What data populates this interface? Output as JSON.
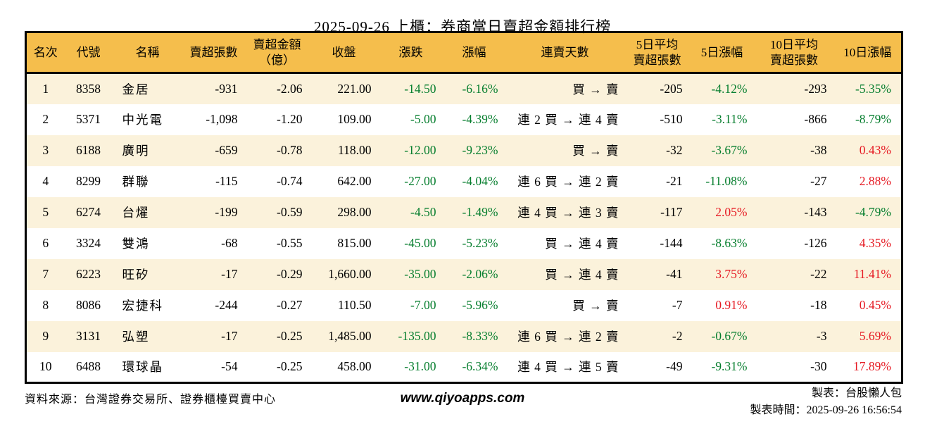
{
  "title": "2025-09-26 上櫃：券商當日賣超金額排行榜",
  "colors": {
    "header_bg": "#f5be4c",
    "stripe_bg": "#fbf2db",
    "row_bg": "#ffffff",
    "up_red": "#e61a23",
    "down_green": "#067e2e",
    "border": "#000000"
  },
  "table": {
    "headers": [
      "名次",
      "代號",
      "名稱",
      "賣超張數",
      "賣超金額\n（億）",
      "收盤",
      "漲跌",
      "漲幅",
      "連賣天數",
      "5日平均\n賣超張數",
      "5日漲幅",
      "10日平均\n賣超張數",
      "10日漲幅"
    ],
    "rows": [
      {
        "rank": "1",
        "code": "8358",
        "name": "金居",
        "net_sell_lots": "-931",
        "net_sell_amount": "-2.06",
        "close": "221.00",
        "change": "-14.50",
        "change_pct": "-6.16%",
        "streak": "買 → 賣",
        "avg5": "-205",
        "pct5": "-4.12%",
        "avg10": "-293",
        "pct10": "-5.35%"
      },
      {
        "rank": "2",
        "code": "5371",
        "name": "中光電",
        "net_sell_lots": "-1,098",
        "net_sell_amount": "-1.20",
        "close": "109.00",
        "change": "-5.00",
        "change_pct": "-4.39%",
        "streak": "連 2 買 → 連 4 賣",
        "avg5": "-510",
        "pct5": "-3.11%",
        "avg10": "-866",
        "pct10": "-8.79%"
      },
      {
        "rank": "3",
        "code": "6188",
        "name": "廣明",
        "net_sell_lots": "-659",
        "net_sell_amount": "-0.78",
        "close": "118.00",
        "change": "-12.00",
        "change_pct": "-9.23%",
        "streak": "買 → 賣",
        "avg5": "-32",
        "pct5": "-3.67%",
        "avg10": "-38",
        "pct10": "0.43%"
      },
      {
        "rank": "4",
        "code": "8299",
        "name": "群聯",
        "net_sell_lots": "-115",
        "net_sell_amount": "-0.74",
        "close": "642.00",
        "change": "-27.00",
        "change_pct": "-4.04%",
        "streak": "連 6 買 → 連 2 賣",
        "avg5": "-21",
        "pct5": "-11.08%",
        "avg10": "-27",
        "pct10": "2.88%"
      },
      {
        "rank": "5",
        "code": "6274",
        "name": "台燿",
        "net_sell_lots": "-199",
        "net_sell_amount": "-0.59",
        "close": "298.00",
        "change": "-4.50",
        "change_pct": "-1.49%",
        "streak": "連 4 買 → 連 3 賣",
        "avg5": "-117",
        "pct5": "2.05%",
        "avg10": "-143",
        "pct10": "-4.79%"
      },
      {
        "rank": "6",
        "code": "3324",
        "name": "雙鴻",
        "net_sell_lots": "-68",
        "net_sell_amount": "-0.55",
        "close": "815.00",
        "change": "-45.00",
        "change_pct": "-5.23%",
        "streak": "買 → 連 4 賣",
        "avg5": "-144",
        "pct5": "-8.63%",
        "avg10": "-126",
        "pct10": "4.35%"
      },
      {
        "rank": "7",
        "code": "6223",
        "name": "旺矽",
        "net_sell_lots": "-17",
        "net_sell_amount": "-0.29",
        "close": "1,660.00",
        "change": "-35.00",
        "change_pct": "-2.06%",
        "streak": "買 → 連 4 賣",
        "avg5": "-41",
        "pct5": "3.75%",
        "avg10": "-22",
        "pct10": "11.41%"
      },
      {
        "rank": "8",
        "code": "8086",
        "name": "宏捷科",
        "net_sell_lots": "-244",
        "net_sell_amount": "-0.27",
        "close": "110.50",
        "change": "-7.00",
        "change_pct": "-5.96%",
        "streak": "買 → 賣",
        "avg5": "-7",
        "pct5": "0.91%",
        "avg10": "-18",
        "pct10": "0.45%"
      },
      {
        "rank": "9",
        "code": "3131",
        "name": "弘塑",
        "net_sell_lots": "-17",
        "net_sell_amount": "-0.25",
        "close": "1,485.00",
        "change": "-135.00",
        "change_pct": "-8.33%",
        "streak": "連 6 買 → 連 2 賣",
        "avg5": "-2",
        "pct5": "-0.67%",
        "avg10": "-3",
        "pct10": "5.69%"
      },
      {
        "rank": "10",
        "code": "6488",
        "name": "環球晶",
        "net_sell_lots": "-54",
        "net_sell_amount": "-0.25",
        "close": "458.00",
        "change": "-31.00",
        "change_pct": "-6.34%",
        "streak": "連 4 買 → 連 5 賣",
        "avg5": "-49",
        "pct5": "-9.31%",
        "avg10": "-30",
        "pct10": "17.89%"
      }
    ]
  },
  "footer": {
    "source": "資料來源：台灣證券交易所、證券櫃檯買賣中心",
    "website": "www.qiyoapps.com",
    "maker": "製表：台股懶人包",
    "made_time": "製表時間：2025-09-26 16:56:54"
  }
}
